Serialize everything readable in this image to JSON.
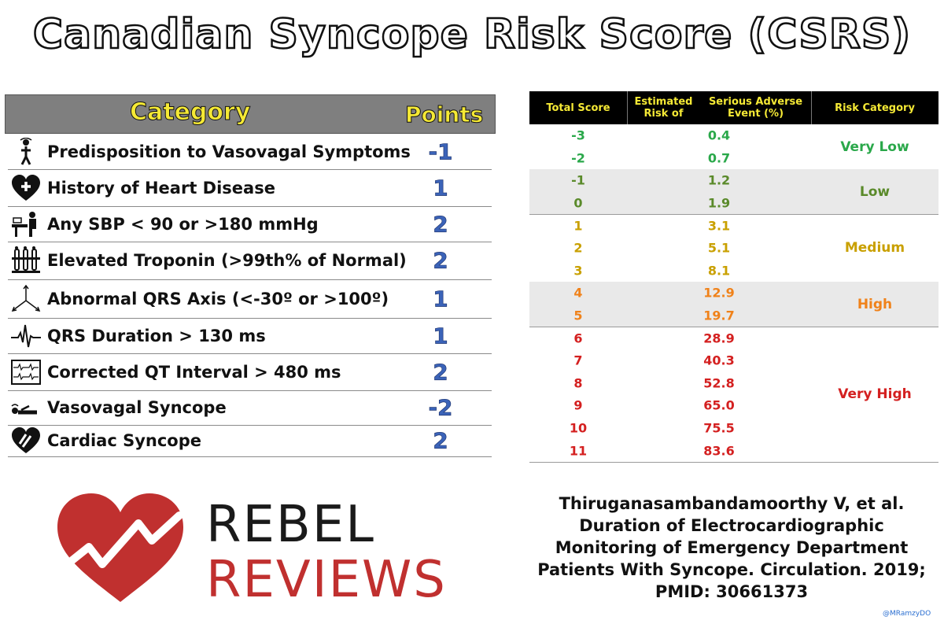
{
  "title": "Canadian Syncope Risk Score (CSRS)",
  "criteria_table": {
    "header": {
      "category": "Category",
      "points": "Points"
    },
    "rows": [
      {
        "icon": "dizzy-person-icon",
        "label": "Predisposition to Vasovagal Symptoms",
        "points": "-1"
      },
      {
        "icon": "heart-plus-icon",
        "label": "History of Heart Disease",
        "points": "1"
      },
      {
        "icon": "blood-pressure-icon",
        "label": "Any SBP < 90 or >180 mmHg",
        "points": "2"
      },
      {
        "icon": "test-tubes-icon",
        "label": "Elevated Troponin (>99th% of Normal)",
        "points": "2"
      },
      {
        "icon": "axis-icon",
        "label": "Abnormal QRS Axis (<-30º or >100º)",
        "points": "1"
      },
      {
        "icon": "ecg-wave-icon",
        "label": "QRS Duration > 130 ms",
        "points": "1"
      },
      {
        "icon": "ecg-strip-icon",
        "label": "Corrected QT Interval > 480 ms",
        "points": "2"
      },
      {
        "icon": "fainting-person-icon",
        "label": "Vasovagal Syncope",
        "points": "-2"
      },
      {
        "icon": "broken-heart-icon",
        "label": "Cardiac Syncope",
        "points": "2"
      }
    ]
  },
  "risk_table": {
    "headers": {
      "score": "Total Score",
      "risk": "Estimated Risk of\nSerious Adverse Event (%)",
      "category": "Risk Category"
    },
    "bands": [
      {
        "category": "Very Low",
        "color": "#2aa84a",
        "shaded": false,
        "rows": [
          {
            "score": "-3",
            "risk": "0.4"
          },
          {
            "score": "-2",
            "risk": "0.7"
          }
        ]
      },
      {
        "category": "Low",
        "color": "#5a8a2a",
        "shaded": true,
        "rows": [
          {
            "score": "-1",
            "risk": "1.2"
          },
          {
            "score": "0",
            "risk": "1.9"
          }
        ]
      },
      {
        "category": "Medium",
        "color": "#c9a000",
        "shaded": false,
        "rows": [
          {
            "score": "1",
            "risk": "3.1"
          },
          {
            "score": "2",
            "risk": "5.1"
          },
          {
            "score": "3",
            "risk": "8.1"
          }
        ]
      },
      {
        "category": "High",
        "color": "#f0821a",
        "shaded": true,
        "rows": [
          {
            "score": "4",
            "risk": "12.9"
          },
          {
            "score": "5",
            "risk": "19.7"
          }
        ]
      },
      {
        "category": "Very High",
        "color": "#d42020",
        "shaded": false,
        "rows": [
          {
            "score": "6",
            "risk": "28.9"
          },
          {
            "score": "7",
            "risk": "40.3"
          },
          {
            "score": "8",
            "risk": "52.8"
          },
          {
            "score": "9",
            "risk": "65.0"
          },
          {
            "score": "10",
            "risk": "75.5"
          },
          {
            "score": "11",
            "risk": "83.6"
          }
        ]
      }
    ]
  },
  "logo": {
    "line1": "REBEL",
    "line2": "REVIEWS",
    "heart_color": "#c0302f"
  },
  "citation": "Thiruganasambandamoorthy V, et al.\nDuration of Electrocardiographic\nMonitoring of Emergency Department\nPatients With Syncope. Circulation. 2019;\nPMID: 30661373",
  "handle": "@MRamzyDO"
}
